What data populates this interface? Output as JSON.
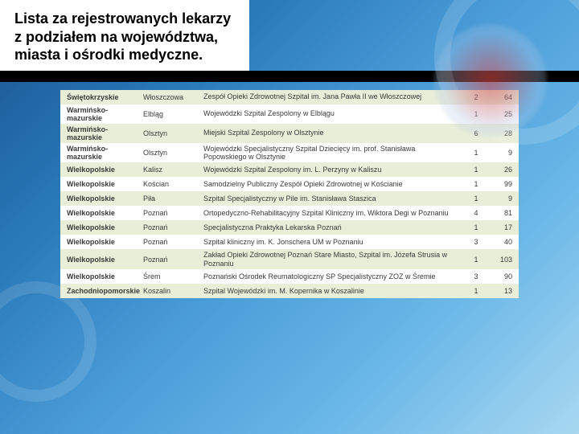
{
  "header": {
    "title": "Lista za rejestrowanych lekarzy z podziałem na województwa, miasta i ośrodki medyczne."
  },
  "table": {
    "rows": [
      {
        "voivodeship": "Świętokrzyskie",
        "city": "Włoszczowa",
        "center": "Zespół Opieki Zdrowotnej Szpital im. Jana Pawła II we Włoszczowej",
        "v1": "2",
        "v2": "64",
        "band": "odd"
      },
      {
        "voivodeship": "Warmińsko-mazurskie",
        "city": "Elbląg",
        "center": "Wojewódzki Szpital Zespolony w Elblągu",
        "v1": "1",
        "v2": "25",
        "band": "even"
      },
      {
        "voivodeship": "Warmińsko-mazurskie",
        "city": "Olsztyn",
        "center": "Miejski Szpital Zespolony w Olsztynie",
        "v1": "6",
        "v2": "28",
        "band": "odd"
      },
      {
        "voivodeship": "Warmińsko-mazurskie",
        "city": "Olsztyn",
        "center": "Wojewódzki Specjalistyczny Szpital Dziecięcy im. prof. Stanisława Popowskiego w Olsztynie",
        "v1": "1",
        "v2": "9",
        "band": "even"
      },
      {
        "voivodeship": "Wielkopolskie",
        "city": "Kalisz",
        "center": "Wojewódzki Szpital Zespolony im. L. Perzyny w Kaliszu",
        "v1": "1",
        "v2": "26",
        "band": "odd"
      },
      {
        "voivodeship": "Wielkopolskie",
        "city": "Kościan",
        "center": "Samodzielny Publiczny Zespół Opieki Zdrowotnej w Kościanie",
        "v1": "1",
        "v2": "99",
        "band": "even"
      },
      {
        "voivodeship": "Wielkopolskie",
        "city": "Piła",
        "center": "Szpital Specjalistyczny w Pile im. Stanisława Staszica",
        "v1": "1",
        "v2": "9",
        "band": "odd"
      },
      {
        "voivodeship": "Wielkopolskie",
        "city": "Poznań",
        "center": "Ortopedyczno-Rehabilitacyjny Szpital Kliniczny im. Wiktora Degi w Poznaniu",
        "v1": "4",
        "v2": "81",
        "band": "even"
      },
      {
        "voivodeship": "Wielkopolskie",
        "city": "Poznań",
        "center": "Specjalistyczna Praktyka Lekarska Poznań",
        "v1": "1",
        "v2": "17",
        "band": "odd"
      },
      {
        "voivodeship": "Wielkopolskie",
        "city": "Poznań",
        "center": "Szpital kliniczny im. K. Jonschera UM w Poznaniu",
        "v1": "3",
        "v2": "40",
        "band": "even"
      },
      {
        "voivodeship": "Wielkopolskie",
        "city": "Poznań",
        "center": "Zakład Opieki Zdrowotnej Poznań Stare Miasto, Szpital im. Józefa Strusia w Poznaniu",
        "v1": "1",
        "v2": "103",
        "band": "odd"
      },
      {
        "voivodeship": "Wielkopolskie",
        "city": "Śrem",
        "center": "Poznański Ośrodek Reumatologiczny SP Specjalistyczny ZOZ w Śremie",
        "v1": "3",
        "v2": "90",
        "band": "even"
      },
      {
        "voivodeship": "Zachodniopomorskie",
        "city": "Koszalin",
        "center": "Szpital Wojewódzki im. M. Kopernika w Koszalinie",
        "v1": "1",
        "v2": "13",
        "band": "odd"
      }
    ]
  }
}
